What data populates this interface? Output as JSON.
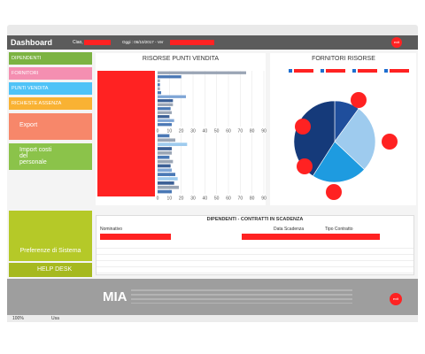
{
  "header": {
    "title": "Dashboard",
    "greeting": "Ciao,",
    "date": "Oggi : 06/10/2017 - Ver",
    "exit": "exit"
  },
  "menu": [
    "DIPENDENTI",
    "FORNITORI",
    "PUNTI VENDITA",
    "RICHIESTE ASSENZA"
  ],
  "tiles": {
    "export": "Export",
    "import": "Import costi del personale",
    "preferences": "Preferenze di Sistema",
    "help": "HELP DESK"
  },
  "chart_data": [
    {
      "type": "bar",
      "orientation": "horizontal",
      "title": "RISORSE PUNTI VENDITA",
      "categories": [
        null,
        null,
        null,
        null,
        null,
        null,
        null,
        null,
        null,
        null,
        null,
        null,
        null,
        null
      ],
      "values": [
        75,
        20,
        2,
        2,
        2,
        3,
        24,
        13,
        13,
        11,
        12,
        10,
        14,
        12
      ],
      "colors": [
        "#9aa5b5",
        "#4a78b5",
        "#9aa5b5",
        "#4a78b5",
        "#9aa5b5",
        "#4a78b5",
        "#7fa6d6",
        "#3b5f96",
        "#9aa5b5",
        "#4a78b5",
        "#9aa5b5",
        "#3b5f96",
        "#7fa6d6",
        "#4a78b5"
      ],
      "xlim": [
        0,
        90
      ],
      "xticks": [
        0,
        10,
        20,
        30,
        40,
        50,
        60,
        70,
        80,
        90
      ],
      "grid": true
    },
    {
      "type": "bar",
      "orientation": "horizontal",
      "categories": [
        null,
        null,
        null,
        null,
        null,
        null,
        null,
        null,
        null,
        null,
        null,
        null,
        null,
        null
      ],
      "values": [
        10,
        15,
        25,
        12,
        12,
        10,
        13,
        11,
        12,
        15,
        17,
        14,
        18,
        12
      ],
      "colors": [
        "#4a78b5",
        "#9aa5b5",
        "#9ecbee",
        "#3b5f96",
        "#9aa5b5",
        "#4a78b5",
        "#9aa5b5",
        "#3b5f96",
        "#7fa6d6",
        "#4a78b5",
        "#9ecbee",
        "#3b5f96",
        "#9aa5b5",
        "#4a78b5"
      ],
      "xlim": [
        0,
        90
      ],
      "xticks": [
        0,
        10,
        20,
        30,
        40,
        50,
        60,
        70,
        80,
        90
      ],
      "grid": true
    },
    {
      "type": "pie",
      "title": "FORNITORI RISORSE",
      "values": [
        10,
        27,
        22,
        41
      ],
      "colors": [
        "#1f4e9c",
        "#9ecbee",
        "#1e9be0",
        "#153a7a"
      ]
    }
  ],
  "table": {
    "title": "DIPENDENTI - CONTRATTI IN SCADENZA",
    "columns": [
      "Nominativo",
      "Data Scadenza",
      "Tipo Contratto"
    ]
  },
  "footer": {
    "logo": "MIA",
    "exit": "exit"
  },
  "status": {
    "zoom": "100%",
    "mode": "Usa"
  }
}
